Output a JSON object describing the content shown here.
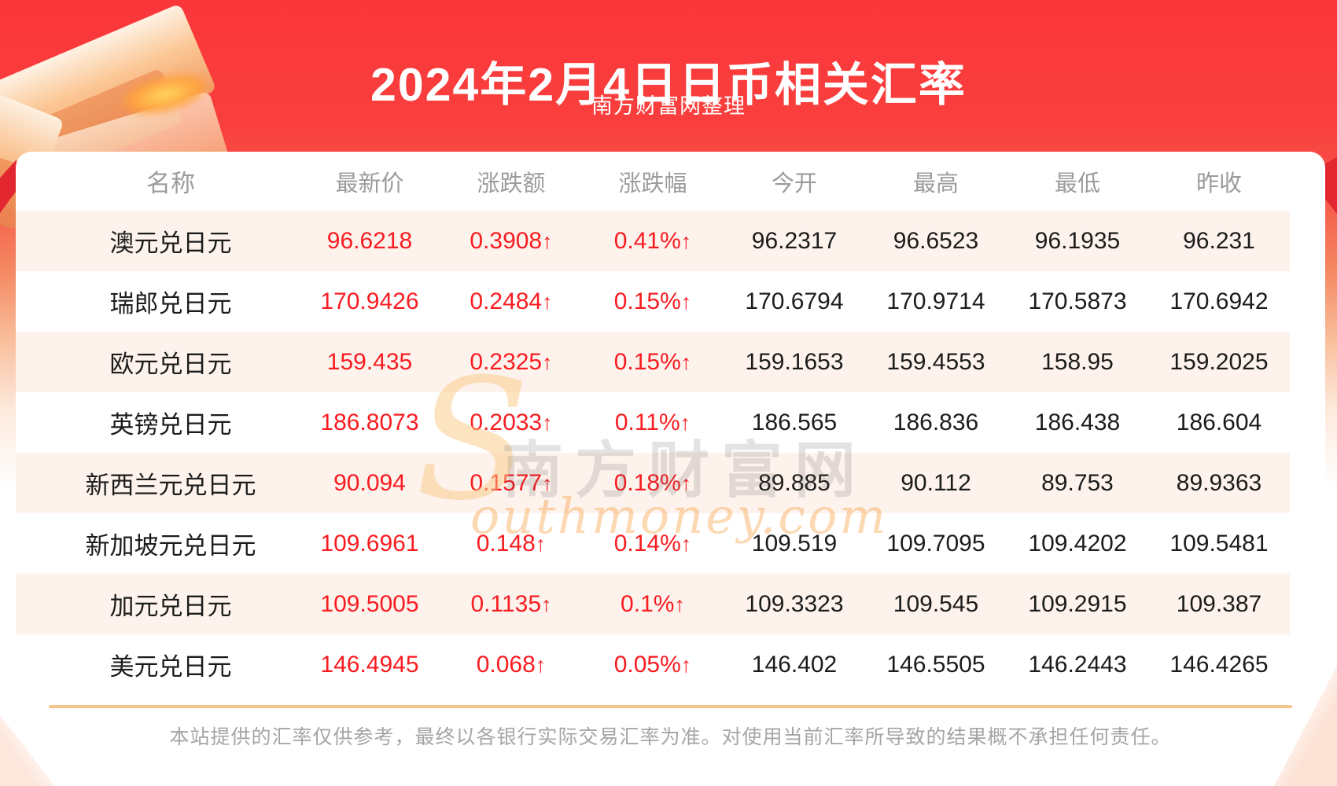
{
  "page": {
    "title": "2024年2月4日日币相关汇率",
    "subtitle": "南方财富网整理",
    "disclaimer": "本站提供的汇率仅供参考，最终以各银行实际交易汇率为准。对使用当前汇率所导致的结果概不承担任何责任。"
  },
  "watermark": {
    "initial": "S",
    "cjk": "南方财富网",
    "latin": "outhmoney.com"
  },
  "colors": {
    "header_red": "#fa383c",
    "value_red": "#f91c21",
    "row_alt_pink": "#fdf2ec",
    "divider_tan": "#f4c48d",
    "muted_gray": "#9c9c9c"
  },
  "table": {
    "up_arrow": "↑",
    "columns": [
      "名称",
      "最新价",
      "涨跌额",
      "涨跌幅",
      "今开",
      "最高",
      "最低",
      "昨收"
    ],
    "rows": [
      {
        "name": "澳元兑日元",
        "last": "96.6218",
        "change": "0.3908",
        "change_pct": "0.41%",
        "open": "96.2317",
        "high": "96.6523",
        "low": "96.1935",
        "prev_close": "96.231",
        "direction": "up"
      },
      {
        "name": "瑞郎兑日元",
        "last": "170.9426",
        "change": "0.2484",
        "change_pct": "0.15%",
        "open": "170.6794",
        "high": "170.9714",
        "low": "170.5873",
        "prev_close": "170.6942",
        "direction": "up"
      },
      {
        "name": "欧元兑日元",
        "last": "159.435",
        "change": "0.2325",
        "change_pct": "0.15%",
        "open": "159.1653",
        "high": "159.4553",
        "low": "158.95",
        "prev_close": "159.2025",
        "direction": "up"
      },
      {
        "name": "英镑兑日元",
        "last": "186.8073",
        "change": "0.2033",
        "change_pct": "0.11%",
        "open": "186.565",
        "high": "186.836",
        "low": "186.438",
        "prev_close": "186.604",
        "direction": "up"
      },
      {
        "name": "新西兰元兑日元",
        "last": "90.094",
        "change": "0.1577",
        "change_pct": "0.18%",
        "open": "89.885",
        "high": "90.112",
        "low": "89.753",
        "prev_close": "89.9363",
        "direction": "up"
      },
      {
        "name": "新加坡元兑日元",
        "last": "109.6961",
        "change": "0.148",
        "change_pct": "0.14%",
        "open": "109.519",
        "high": "109.7095",
        "low": "109.4202",
        "prev_close": "109.5481",
        "direction": "up"
      },
      {
        "name": "加元兑日元",
        "last": "109.5005",
        "change": "0.1135",
        "change_pct": "0.1%",
        "open": "109.3323",
        "high": "109.545",
        "low": "109.2915",
        "prev_close": "109.387",
        "direction": "up"
      },
      {
        "name": "美元兑日元",
        "last": "146.4945",
        "change": "0.068",
        "change_pct": "0.05%",
        "open": "146.402",
        "high": "146.5505",
        "low": "146.2443",
        "prev_close": "146.4265",
        "direction": "up"
      }
    ]
  }
}
